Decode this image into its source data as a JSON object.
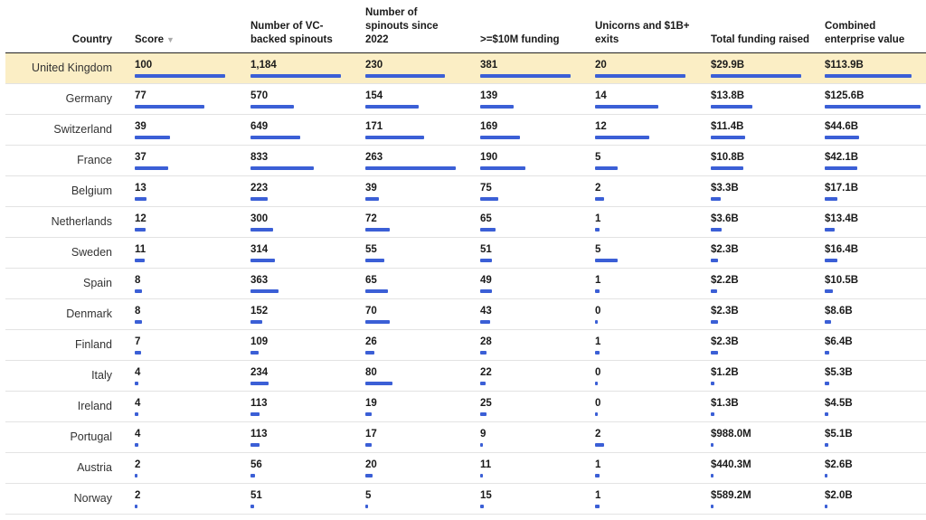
{
  "columns": [
    {
      "key": "country",
      "label": "Country"
    },
    {
      "key": "score",
      "label": "Score",
      "sort_icon": "▼",
      "max": 100
    },
    {
      "key": "spinouts",
      "label": "Number of VC-backed spinouts",
      "max": 1184
    },
    {
      "key": "since2022",
      "label": "Number of spinouts since 2022",
      "max": 263
    },
    {
      "key": "funding10m",
      "label": ">=$10M funding",
      "max": 381
    },
    {
      "key": "unicorns",
      "label": "Unicorns and $1B+ exits",
      "max": 20
    },
    {
      "key": "total_funding",
      "label": "Total funding raised",
      "max": 29.9
    },
    {
      "key": "enterprise_value",
      "label": "Combined enterprise value",
      "max": 125.6
    }
  ],
  "colors": {
    "bar": "#3b5fd6",
    "highlight": "#fbeec5"
  },
  "rows": [
    {
      "country": "United Kingdom",
      "highlight": true,
      "score": "100",
      "score_v": 100,
      "spinouts": "1,184",
      "spinouts_v": 1184,
      "since2022": "230",
      "since2022_v": 230,
      "funding10m": "381",
      "funding10m_v": 381,
      "unicorns": "20",
      "unicorns_v": 20,
      "total_funding": "$29.9B",
      "total_funding_v": 29.9,
      "enterprise_value": "$113.9B",
      "enterprise_value_v": 113.9
    },
    {
      "country": "Germany",
      "score": "77",
      "score_v": 77,
      "spinouts": "570",
      "spinouts_v": 570,
      "since2022": "154",
      "since2022_v": 154,
      "funding10m": "139",
      "funding10m_v": 139,
      "unicorns": "14",
      "unicorns_v": 14,
      "total_funding": "$13.8B",
      "total_funding_v": 13.8,
      "enterprise_value": "$125.6B",
      "enterprise_value_v": 125.6
    },
    {
      "country": "Switzerland",
      "score": "39",
      "score_v": 39,
      "spinouts": "649",
      "spinouts_v": 649,
      "since2022": "171",
      "since2022_v": 171,
      "funding10m": "169",
      "funding10m_v": 169,
      "unicorns": "12",
      "unicorns_v": 12,
      "total_funding": "$11.4B",
      "total_funding_v": 11.4,
      "enterprise_value": "$44.6B",
      "enterprise_value_v": 44.6
    },
    {
      "country": "France",
      "score": "37",
      "score_v": 37,
      "spinouts": "833",
      "spinouts_v": 833,
      "since2022": "263",
      "since2022_v": 263,
      "funding10m": "190",
      "funding10m_v": 190,
      "unicorns": "5",
      "unicorns_v": 5,
      "total_funding": "$10.8B",
      "total_funding_v": 10.8,
      "enterprise_value": "$42.1B",
      "enterprise_value_v": 42.1
    },
    {
      "country": "Belgium",
      "score": "13",
      "score_v": 13,
      "spinouts": "223",
      "spinouts_v": 223,
      "since2022": "39",
      "since2022_v": 39,
      "funding10m": "75",
      "funding10m_v": 75,
      "unicorns": "2",
      "unicorns_v": 2,
      "total_funding": "$3.3B",
      "total_funding_v": 3.3,
      "enterprise_value": "$17.1B",
      "enterprise_value_v": 17.1
    },
    {
      "country": "Netherlands",
      "score": "12",
      "score_v": 12,
      "spinouts": "300",
      "spinouts_v": 300,
      "since2022": "72",
      "since2022_v": 72,
      "funding10m": "65",
      "funding10m_v": 65,
      "unicorns": "1",
      "unicorns_v": 1,
      "total_funding": "$3.6B",
      "total_funding_v": 3.6,
      "enterprise_value": "$13.4B",
      "enterprise_value_v": 13.4
    },
    {
      "country": "Sweden",
      "score": "11",
      "score_v": 11,
      "spinouts": "314",
      "spinouts_v": 314,
      "since2022": "55",
      "since2022_v": 55,
      "funding10m": "51",
      "funding10m_v": 51,
      "unicorns": "5",
      "unicorns_v": 5,
      "total_funding": "$2.3B",
      "total_funding_v": 2.3,
      "enterprise_value": "$16.4B",
      "enterprise_value_v": 16.4
    },
    {
      "country": "Spain",
      "score": "8",
      "score_v": 8,
      "spinouts": "363",
      "spinouts_v": 363,
      "since2022": "65",
      "since2022_v": 65,
      "funding10m": "49",
      "funding10m_v": 49,
      "unicorns": "1",
      "unicorns_v": 1,
      "total_funding": "$2.2B",
      "total_funding_v": 2.2,
      "enterprise_value": "$10.5B",
      "enterprise_value_v": 10.5
    },
    {
      "country": "Denmark",
      "score": "8",
      "score_v": 8,
      "spinouts": "152",
      "spinouts_v": 152,
      "since2022": "70",
      "since2022_v": 70,
      "funding10m": "43",
      "funding10m_v": 43,
      "unicorns": "0",
      "unicorns_v": 0,
      "total_funding": "$2.3B",
      "total_funding_v": 2.3,
      "enterprise_value": "$8.6B",
      "enterprise_value_v": 8.6
    },
    {
      "country": "Finland",
      "score": "7",
      "score_v": 7,
      "spinouts": "109",
      "spinouts_v": 109,
      "since2022": "26",
      "since2022_v": 26,
      "funding10m": "28",
      "funding10m_v": 28,
      "unicorns": "1",
      "unicorns_v": 1,
      "total_funding": "$2.3B",
      "total_funding_v": 2.3,
      "enterprise_value": "$6.4B",
      "enterprise_value_v": 6.4
    },
    {
      "country": "Italy",
      "score": "4",
      "score_v": 4,
      "spinouts": "234",
      "spinouts_v": 234,
      "since2022": "80",
      "since2022_v": 80,
      "funding10m": "22",
      "funding10m_v": 22,
      "unicorns": "0",
      "unicorns_v": 0,
      "total_funding": "$1.2B",
      "total_funding_v": 1.2,
      "enterprise_value": "$5.3B",
      "enterprise_value_v": 5.3
    },
    {
      "country": "Ireland",
      "score": "4",
      "score_v": 4,
      "spinouts": "113",
      "spinouts_v": 113,
      "since2022": "19",
      "since2022_v": 19,
      "funding10m": "25",
      "funding10m_v": 25,
      "unicorns": "0",
      "unicorns_v": 0,
      "total_funding": "$1.3B",
      "total_funding_v": 1.3,
      "enterprise_value": "$4.5B",
      "enterprise_value_v": 4.5
    },
    {
      "country": "Portugal",
      "score": "4",
      "score_v": 4,
      "spinouts": "113",
      "spinouts_v": 113,
      "since2022": "17",
      "since2022_v": 17,
      "funding10m": "9",
      "funding10m_v": 9,
      "unicorns": "2",
      "unicorns_v": 2,
      "total_funding": "$988.0M",
      "total_funding_v": 0.988,
      "enterprise_value": "$5.1B",
      "enterprise_value_v": 5.1
    },
    {
      "country": "Austria",
      "score": "2",
      "score_v": 2,
      "spinouts": "56",
      "spinouts_v": 56,
      "since2022": "20",
      "since2022_v": 20,
      "funding10m": "11",
      "funding10m_v": 11,
      "unicorns": "1",
      "unicorns_v": 1,
      "total_funding": "$440.3M",
      "total_funding_v": 0.4403,
      "enterprise_value": "$2.6B",
      "enterprise_value_v": 2.6
    },
    {
      "country": "Norway",
      "score": "2",
      "score_v": 2,
      "spinouts": "51",
      "spinouts_v": 51,
      "since2022": "5",
      "since2022_v": 5,
      "funding10m": "15",
      "funding10m_v": 15,
      "unicorns": "1",
      "unicorns_v": 1,
      "total_funding": "$589.2M",
      "total_funding_v": 0.5892,
      "enterprise_value": "$2.0B",
      "enterprise_value_v": 2.0
    }
  ]
}
